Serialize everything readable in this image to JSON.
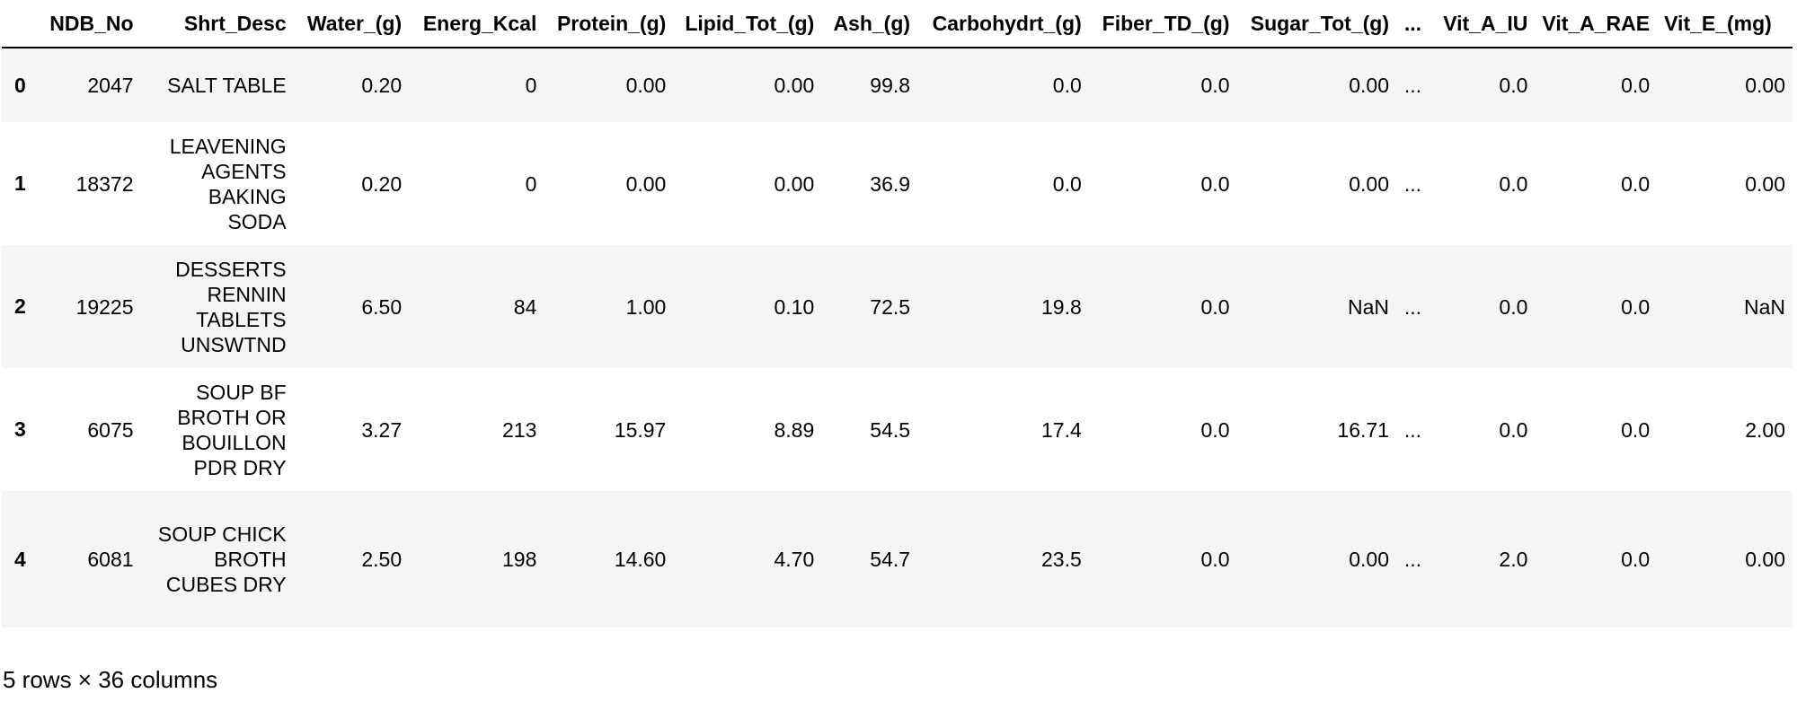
{
  "columns": [
    {
      "key": "idx",
      "label": ""
    },
    {
      "key": "ndb_no",
      "label": "NDB_No"
    },
    {
      "key": "shrt_desc",
      "label": "Shrt_Desc"
    },
    {
      "key": "water",
      "label": "Water_(g)"
    },
    {
      "key": "energ",
      "label": "Energ_Kcal"
    },
    {
      "key": "protein",
      "label": "Protein_(g)"
    },
    {
      "key": "lipid",
      "label": "Lipid_Tot_(g)"
    },
    {
      "key": "ash",
      "label": "Ash_(g)"
    },
    {
      "key": "carb",
      "label": "Carbohydrt_(g)"
    },
    {
      "key": "fiber",
      "label": "Fiber_TD_(g)"
    },
    {
      "key": "sugar",
      "label": "Sugar_Tot_(g)"
    },
    {
      "key": "ellipsis",
      "label": "..."
    },
    {
      "key": "vita_iu",
      "label": "Vit_A_IU"
    },
    {
      "key": "vita_rae",
      "label": "Vit_A_RAE"
    },
    {
      "key": "vite",
      "label": "Vit_E_(mg)"
    }
  ],
  "rows": [
    {
      "idx": "0",
      "ndb_no": "2047",
      "shrt_desc": "SALT TABLE",
      "water": "0.20",
      "energ": "0",
      "protein": "0.00",
      "lipid": "0.00",
      "ash": "99.8",
      "carb": "0.0",
      "fiber": "0.0",
      "sugar": "0.00",
      "ellipsis": "...",
      "vita_iu": "0.0",
      "vita_rae": "0.0",
      "vite": "0.00"
    },
    {
      "idx": "1",
      "ndb_no": "18372",
      "shrt_desc": "LEAVENING AGENTS BAKING SODA",
      "water": "0.20",
      "energ": "0",
      "protein": "0.00",
      "lipid": "0.00",
      "ash": "36.9",
      "carb": "0.0",
      "fiber": "0.0",
      "sugar": "0.00",
      "ellipsis": "...",
      "vita_iu": "0.0",
      "vita_rae": "0.0",
      "vite": "0.00"
    },
    {
      "idx": "2",
      "ndb_no": "19225",
      "shrt_desc": "DESSERTS RENNIN TABLETS UNSWTND",
      "water": "6.50",
      "energ": "84",
      "protein": "1.00",
      "lipid": "0.10",
      "ash": "72.5",
      "carb": "19.8",
      "fiber": "0.0",
      "sugar": "NaN",
      "ellipsis": "...",
      "vita_iu": "0.0",
      "vita_rae": "0.0",
      "vite": "NaN"
    },
    {
      "idx": "3",
      "ndb_no": "6075",
      "shrt_desc": "SOUP BF BROTH OR BOUILLON PDR DRY",
      "water": "3.27",
      "energ": "213",
      "protein": "15.97",
      "lipid": "8.89",
      "ash": "54.5",
      "carb": "17.4",
      "fiber": "0.0",
      "sugar": "16.71",
      "ellipsis": "...",
      "vita_iu": "0.0",
      "vita_rae": "0.0",
      "vite": "2.00"
    },
    {
      "idx": "4",
      "ndb_no": "6081",
      "shrt_desc": "SOUP CHICK BROTH CUBES DRY",
      "water": "2.50",
      "energ": "198",
      "protein": "14.60",
      "lipid": "4.70",
      "ash": "54.7",
      "carb": "23.5",
      "fiber": "0.0",
      "sugar": "0.00",
      "ellipsis": "...",
      "vita_iu": "2.0",
      "vita_rae": "0.0",
      "vite": "0.00"
    }
  ],
  "footer": "5 rows × 36 columns"
}
